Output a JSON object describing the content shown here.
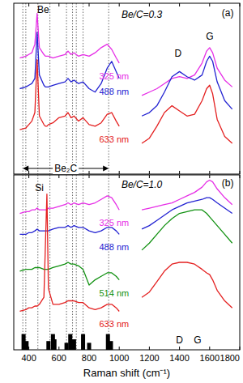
{
  "chart_data": [
    {
      "type": "line",
      "x": [
        300,
        340,
        380,
        400,
        420,
        440,
        455,
        470,
        500,
        510,
        520,
        530,
        560,
        600,
        640,
        660,
        680,
        700,
        730,
        760,
        800,
        840,
        880,
        920,
        950,
        980,
        1000,
        1050,
        1100,
        1150,
        1200,
        1250,
        1300,
        1350,
        1400,
        1450,
        1500,
        1550,
        1580,
        1600,
        1620,
        1650,
        1700,
        1750,
        1800
      ],
      "xlim": [
        300,
        1800
      ],
      "xticks": [
        400,
        600,
        800,
        1000,
        1200,
        1400,
        1600,
        1800
      ],
      "ylim": [
        0,
        10
      ],
      "tick_labels": false,
      "guide_lines": [
        360,
        380,
        460,
        540,
        650,
        690,
        715,
        760,
        930
      ],
      "guide_label": "Be₂C",
      "series": [
        {
          "name": "325 nm",
          "color": "#e62ee6",
          "values": [
            null,
            6.8,
            6.9,
            7.0,
            7.1,
            7.6,
            9.4,
            7.4,
            7.0,
            6.9,
            6.9,
            6.9,
            6.8,
            6.9,
            7.0,
            7.2,
            7.0,
            7.1,
            6.9,
            7.0,
            6.9,
            7.1,
            7.4,
            7.6,
            7.3,
            6.8,
            6.5,
            null,
            null,
            4.6,
            4.8,
            5.0,
            5.3,
            5.6,
            5.7,
            5.6,
            5.8,
            6.5,
            7.2,
            7.4,
            7.1,
            6.2,
            5.5,
            5.1,
            null
          ]
        },
        {
          "name": "488 nm",
          "color": "#2323d2",
          "values": [
            null,
            5.0,
            5.1,
            5.2,
            5.3,
            5.6,
            8.3,
            5.8,
            5.2,
            5.1,
            5.1,
            5.1,
            5.2,
            5.3,
            5.4,
            5.6,
            5.4,
            5.5,
            5.3,
            5.4,
            5.0,
            4.8,
            5.3,
            6.2,
            6.6,
            6.0,
            5.6,
            null,
            null,
            3.4,
            3.6,
            4.0,
            4.8,
            5.7,
            6.0,
            5.7,
            5.5,
            5.8,
            6.6,
            6.9,
            6.6,
            5.4,
            4.3,
            3.8,
            null
          ]
        },
        {
          "name": "633 nm",
          "color": "#e42020",
          "values": [
            null,
            2.6,
            2.7,
            2.9,
            3.1,
            3.6,
            6.7,
            3.4,
            2.9,
            2.8,
            2.8,
            2.9,
            3.0,
            3.3,
            3.4,
            3.6,
            3.3,
            3.4,
            3.1,
            3.3,
            2.9,
            2.8,
            3.0,
            3.5,
            3.6,
            3.1,
            2.8,
            null,
            null,
            1.8,
            2.1,
            2.8,
            3.6,
            4.0,
            3.7,
            3.4,
            3.5,
            4.3,
            5.0,
            5.2,
            4.7,
            3.2,
            2.2,
            1.8,
            null
          ]
        }
      ],
      "annotations": [
        {
          "text": "Be/C=0.3",
          "x": 1150,
          "y": 9.3
        },
        {
          "text": "(a)",
          "x": 1720,
          "y": 9.4
        },
        {
          "text": "Be",
          "x": 495,
          "y": 9.6
        },
        {
          "text": "D",
          "x": 1390,
          "y": 7.0
        },
        {
          "text": "G",
          "x": 1600,
          "y": 8.0
        }
      ]
    },
    {
      "type": "line",
      "x": [
        300,
        340,
        380,
        400,
        420,
        440,
        455,
        470,
        500,
        510,
        520,
        530,
        560,
        600,
        640,
        660,
        680,
        700,
        730,
        760,
        800,
        840,
        880,
        920,
        950,
        980,
        1000,
        1050,
        1100,
        1150,
        1200,
        1250,
        1300,
        1350,
        1400,
        1450,
        1500,
        1550,
        1580,
        1600,
        1620,
        1650,
        1700,
        1750,
        1800
      ],
      "xlim": [
        300,
        1800
      ],
      "xticks": [
        400,
        600,
        800,
        1000,
        1200,
        1400,
        1600,
        1800
      ],
      "ylim": [
        0,
        10
      ],
      "tick_labels": "x",
      "x_label": "Raman shift (cm⁻¹)",
      "guide_lines": [
        360,
        380,
        460,
        540,
        650,
        690,
        715,
        760,
        930
      ],
      "sticks": {
        "x": [
          365,
          385,
          530,
          560,
          570,
          650,
          675,
          700,
          760,
          800,
          925,
          945
        ],
        "heights": [
          0.9,
          0.5,
          0.5,
          0.9,
          0.6,
          0.4,
          0.9,
          0.6,
          0.9,
          0.4,
          0.9,
          0.5
        ],
        "color": "#000000"
      },
      "series": [
        {
          "name": "325 nm",
          "color": "#e62ee6",
          "values": [
            null,
            7.8,
            7.9,
            7.9,
            8.0,
            8.0,
            8.1,
            8.0,
            8.0,
            8.0,
            8.0,
            8.1,
            8.1,
            8.2,
            8.3,
            8.4,
            8.3,
            8.4,
            8.3,
            8.4,
            8.3,
            8.4,
            8.6,
            8.8,
            8.7,
            8.3,
            8.0,
            null,
            null,
            8.0,
            8.1,
            8.2,
            8.3,
            8.4,
            8.6,
            8.8,
            9.0,
            9.3,
            9.6,
            9.7,
            9.6,
            9.2,
            8.7,
            8.3,
            null
          ]
        },
        {
          "name": "488 nm",
          "color": "#2323d2",
          "values": [
            null,
            6.6,
            6.6,
            6.7,
            6.7,
            6.8,
            6.9,
            6.8,
            6.8,
            6.8,
            6.8,
            6.8,
            6.9,
            7.0,
            7.0,
            7.1,
            7.0,
            7.1,
            7.0,
            7.0,
            6.8,
            6.7,
            6.8,
            7.0,
            7.0,
            6.8,
            6.6,
            null,
            null,
            6.9,
            7.1,
            7.4,
            7.7,
            8.0,
            8.2,
            8.4,
            8.5,
            8.6,
            8.7,
            8.7,
            8.6,
            8.4,
            8.1,
            7.8,
            null
          ]
        },
        {
          "name": "514 nm",
          "color": "#119111",
          "values": [
            null,
            4.5,
            4.6,
            4.6,
            4.6,
            4.7,
            4.7,
            4.7,
            4.6,
            4.6,
            4.6,
            4.6,
            4.7,
            4.8,
            4.9,
            5.0,
            4.9,
            4.9,
            4.8,
            4.6,
            3.7,
            4.0,
            4.2,
            4.4,
            4.4,
            4.2,
            4.0,
            null,
            null,
            5.7,
            6.1,
            6.6,
            7.1,
            7.5,
            7.8,
            7.9,
            8.0,
            8.0,
            7.8,
            7.6,
            7.4,
            7.1,
            6.6,
            6.1,
            null
          ]
        },
        {
          "name": "633 nm",
          "color": "#e42020",
          "values": [
            null,
            2.2,
            2.3,
            2.4,
            2.4,
            2.5,
            2.5,
            2.6,
            3.0,
            6.0,
            8.9,
            3.5,
            2.6,
            2.6,
            2.7,
            2.8,
            2.8,
            2.8,
            2.7,
            2.7,
            2.4,
            2.3,
            2.4,
            2.6,
            2.6,
            2.4,
            2.2,
            null,
            null,
            3.0,
            3.3,
            3.9,
            4.5,
            4.9,
            5.0,
            5.0,
            4.9,
            4.6,
            4.4,
            4.3,
            4.0,
            3.4,
            2.8,
            2.4,
            null
          ]
        }
      ],
      "annotations": [
        {
          "text": "Be/C=1.0",
          "x": 1150,
          "y": 9.4
        },
        {
          "text": "(b)",
          "x": 1720,
          "y": 9.5
        },
        {
          "text": "Si",
          "x": 470,
          "y": 9.2
        },
        {
          "text": "D",
          "x": 1400,
          "y": 0.5
        },
        {
          "text": "G",
          "x": 1520,
          "y": 0.5
        }
      ]
    }
  ]
}
